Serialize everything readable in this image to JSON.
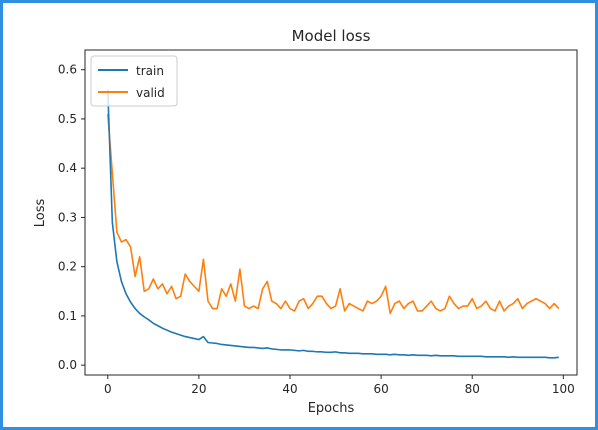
{
  "chart_data": {
    "type": "line",
    "title": "Model loss",
    "xlabel": "Epochs",
    "ylabel": "Loss",
    "xlim": [
      -5,
      103
    ],
    "ylim": [
      -0.02,
      0.64
    ],
    "xticks": [
      0,
      20,
      40,
      60,
      80,
      100
    ],
    "yticks": [
      0.0,
      0.1,
      0.2,
      0.3,
      0.4,
      0.5,
      0.6
    ],
    "xtick_labels": [
      "0",
      "20",
      "40",
      "60",
      "80",
      "100"
    ],
    "ytick_labels": [
      "0.0",
      "0.1",
      "0.2",
      "0.3",
      "0.4",
      "0.5",
      "0.6"
    ],
    "grid": false,
    "legend_position": "upper-left",
    "colors": {
      "train": "#1f77b4",
      "valid": "#ff7f0e"
    },
    "x": [
      0,
      1,
      2,
      3,
      4,
      5,
      6,
      7,
      8,
      9,
      10,
      11,
      12,
      13,
      14,
      15,
      16,
      17,
      18,
      19,
      20,
      21,
      22,
      23,
      24,
      25,
      26,
      27,
      28,
      29,
      30,
      31,
      32,
      33,
      34,
      35,
      36,
      37,
      38,
      39,
      40,
      41,
      42,
      43,
      44,
      45,
      46,
      47,
      48,
      49,
      50,
      51,
      52,
      53,
      54,
      55,
      56,
      57,
      58,
      59,
      60,
      61,
      62,
      63,
      64,
      65,
      66,
      67,
      68,
      69,
      70,
      71,
      72,
      73,
      74,
      75,
      76,
      77,
      78,
      79,
      80,
      81,
      82,
      83,
      84,
      85,
      86,
      87,
      88,
      89,
      90,
      91,
      92,
      93,
      94,
      95,
      96,
      97,
      98,
      99
    ],
    "series": [
      {
        "name": "train",
        "values": [
          0.56,
          0.29,
          0.21,
          0.17,
          0.145,
          0.128,
          0.115,
          0.105,
          0.098,
          0.092,
          0.085,
          0.08,
          0.075,
          0.071,
          0.067,
          0.064,
          0.061,
          0.058,
          0.056,
          0.054,
          0.052,
          0.058,
          0.046,
          0.045,
          0.044,
          0.042,
          0.041,
          0.04,
          0.039,
          0.038,
          0.037,
          0.036,
          0.036,
          0.035,
          0.034,
          0.035,
          0.033,
          0.032,
          0.031,
          0.031,
          0.031,
          0.03,
          0.029,
          0.03,
          0.028,
          0.028,
          0.027,
          0.027,
          0.026,
          0.026,
          0.027,
          0.025,
          0.025,
          0.024,
          0.024,
          0.024,
          0.023,
          0.023,
          0.023,
          0.022,
          0.022,
          0.022,
          0.021,
          0.022,
          0.021,
          0.021,
          0.02,
          0.021,
          0.02,
          0.02,
          0.02,
          0.019,
          0.02,
          0.019,
          0.019,
          0.019,
          0.019,
          0.018,
          0.018,
          0.018,
          0.018,
          0.018,
          0.018,
          0.017,
          0.017,
          0.017,
          0.017,
          0.017,
          0.016,
          0.017,
          0.016,
          0.016,
          0.016,
          0.016,
          0.016,
          0.016,
          0.016,
          0.015,
          0.015,
          0.016
        ]
      },
      {
        "name": "valid",
        "values": [
          0.51,
          0.39,
          0.27,
          0.25,
          0.255,
          0.24,
          0.18,
          0.22,
          0.15,
          0.155,
          0.175,
          0.155,
          0.165,
          0.145,
          0.16,
          0.135,
          0.14,
          0.185,
          0.17,
          0.16,
          0.15,
          0.215,
          0.13,
          0.115,
          0.115,
          0.155,
          0.14,
          0.165,
          0.13,
          0.195,
          0.12,
          0.115,
          0.12,
          0.115,
          0.155,
          0.17,
          0.13,
          0.125,
          0.115,
          0.13,
          0.115,
          0.11,
          0.13,
          0.135,
          0.115,
          0.125,
          0.14,
          0.14,
          0.125,
          0.115,
          0.12,
          0.155,
          0.11,
          0.125,
          0.12,
          0.115,
          0.11,
          0.13,
          0.125,
          0.13,
          0.14,
          0.16,
          0.105,
          0.125,
          0.13,
          0.115,
          0.125,
          0.13,
          0.11,
          0.11,
          0.12,
          0.13,
          0.115,
          0.11,
          0.115,
          0.14,
          0.125,
          0.115,
          0.12,
          0.12,
          0.135,
          0.115,
          0.12,
          0.13,
          0.115,
          0.11,
          0.13,
          0.11,
          0.12,
          0.125,
          0.135,
          0.115,
          0.125,
          0.13,
          0.135,
          0.13,
          0.125,
          0.115,
          0.125,
          0.115
        ]
      }
    ]
  }
}
